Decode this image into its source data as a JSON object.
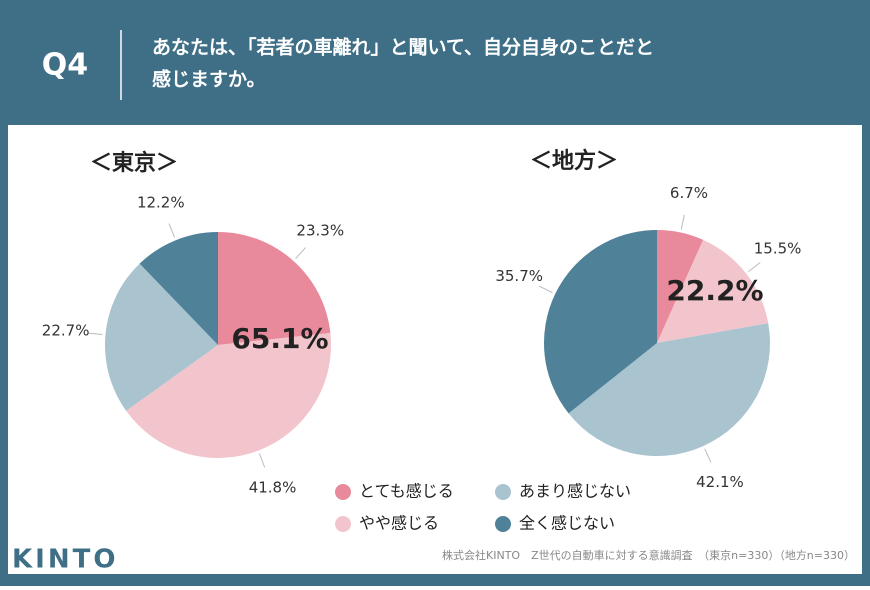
{
  "header": {
    "tag": "Q4",
    "question_line1": "あなたは、「若者の車離れ」と聞いて、自分自身のことだと",
    "question_line2": "感じますか。"
  },
  "chart_data": [
    {
      "type": "pie",
      "title": "＜東京＞",
      "categories": [
        "とても感じる",
        "やや感じる",
        "あまり感じない",
        "全く感じない"
      ],
      "values": [
        23.3,
        41.8,
        22.7,
        12.2
      ],
      "value_labels": [
        "23.3%",
        "41.8%",
        "22.7%",
        "12.2%"
      ],
      "colors": [
        "#e8899c",
        "#f2c5cd",
        "#a9c3cf",
        "#4f8198"
      ],
      "annotation": "65.1%"
    },
    {
      "type": "pie",
      "title": "＜地方＞",
      "categories": [
        "とても感じる",
        "やや感じる",
        "あまり感じない",
        "全く感じない"
      ],
      "values": [
        6.7,
        15.5,
        42.1,
        35.7
      ],
      "value_labels": [
        "6.7%",
        "15.5%",
        "42.1%",
        "35.7%"
      ],
      "colors": [
        "#e8899c",
        "#f2c5cd",
        "#a9c3cf",
        "#4f8198"
      ],
      "annotation": "22.2%"
    }
  ],
  "footer": {
    "source": "株式会社KINTO　Z世代の自動車に対する意識調査　（東京n=330）（地方n=330）",
    "logo": "KINTO"
  }
}
